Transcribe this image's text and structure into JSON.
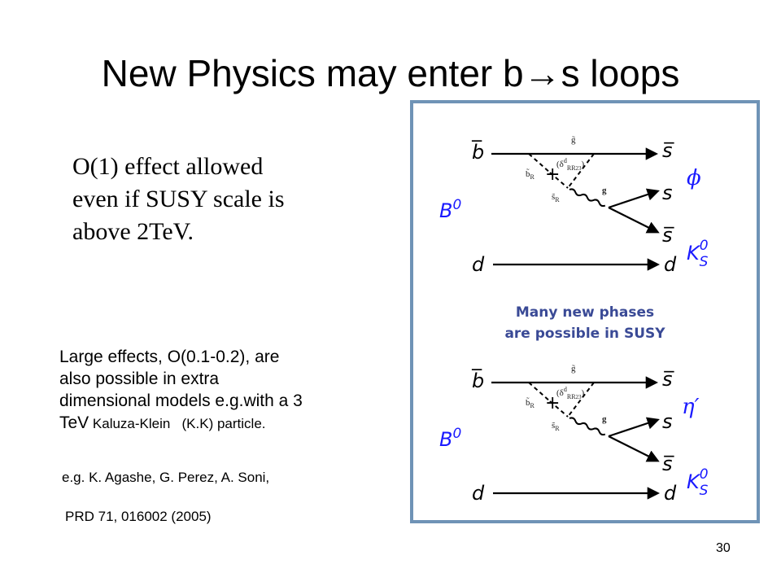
{
  "slide": {
    "title": "New Physics may enter b→s loops",
    "page_number": "30"
  },
  "left_text": {
    "serif_lines": [
      "O(1) effect allowed",
      "even if SUSY scale is",
      "above 2TeV."
    ],
    "sans_line1": "Large effects, O(0.1-0.2), are",
    "sans_line2": "also possible in extra",
    "sans_line3": "dimensional models e.g.with a 3",
    "sans_line4_tev": "TeV",
    "sans_line4_rest": " Kaluza-Klein   (K.K) particle.",
    "ref_authors": "e.g. K. Agashe, G. Perez, A. Soni,",
    "ref_journal": "PRD 71, 016002 (2005)"
  },
  "diagram": {
    "phase_note_line1": "Many new phases",
    "phase_note_line2": "are possible in SUSY",
    "top": {
      "incoming_quark": "b̅",
      "outgoing_quarks": [
        "s̅",
        "s",
        "s̅"
      ],
      "spectator": "d",
      "meson": "B",
      "meson_sup": "0",
      "final_state": "ϕ",
      "kaon": "K",
      "kaon_sup": "0",
      "kaon_sub": "S",
      "gluino_label": "g̃",
      "sbottom_label": "b̃",
      "sbottom_sub": "R",
      "sstrange_label": "s̃",
      "sstrange_sub": "R",
      "gluon_label": "g",
      "insertion_label": "(δ",
      "insertion_sup": "d",
      "insertion_sub": "RR",
      "insertion_idx": "23",
      "insertion_close": ")"
    },
    "bottom": {
      "incoming_quark": "b̅",
      "outgoing_quarks": [
        "s̅",
        "s",
        "s̅"
      ],
      "spectator": "d",
      "meson": "B",
      "meson_sup": "0",
      "final_state": "η′",
      "kaon": "K",
      "kaon_sup": "0",
      "kaon_sub": "S",
      "gluino_label": "g̃",
      "sbottom_label": "b̃",
      "sbottom_sub": "R",
      "sstrange_label": "s̃",
      "sstrange_sub": "R",
      "gluon_label": "g",
      "insertion_label": "(δ",
      "insertion_sup": "d",
      "insertion_sub": "RR",
      "insertion_idx": "23",
      "insertion_close": ")"
    },
    "colors": {
      "panel_border": "#6f93b6",
      "meson_label": "#1a1aff",
      "phase_note": "#3a4a96",
      "lines": "#000000"
    }
  }
}
